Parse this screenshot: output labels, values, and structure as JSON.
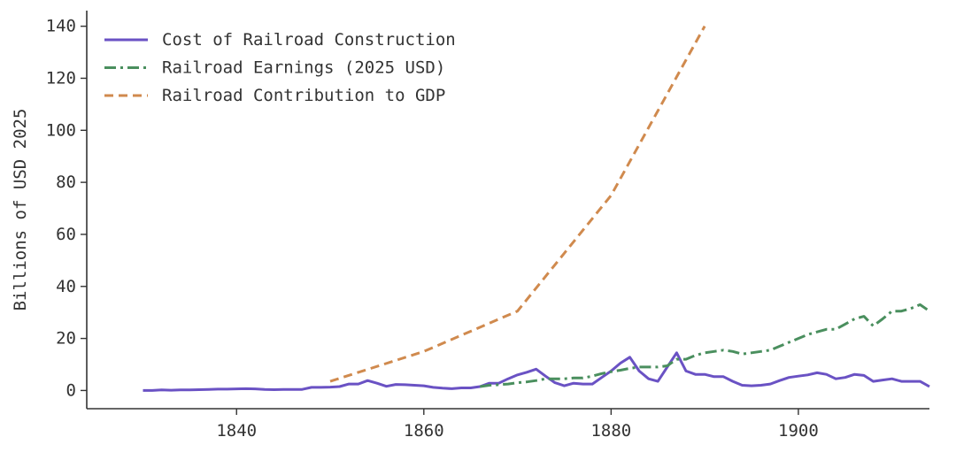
{
  "chart_data": {
    "type": "line",
    "title": "",
    "xlabel": "",
    "ylabel": "Billions of USD 2025",
    "xlim": [
      1824,
      1914
    ],
    "ylim": [
      -7,
      146
    ],
    "xticks": [
      1840,
      1860,
      1880,
      1900
    ],
    "yticks": [
      0,
      20,
      40,
      60,
      80,
      100,
      120,
      140
    ],
    "grid": false,
    "legend_position": "top-left",
    "series": [
      {
        "name": "Cost of Railroad Construction",
        "color": "#6a52c4",
        "style": "solid",
        "x": [
          1830,
          1831,
          1832,
          1833,
          1834,
          1835,
          1836,
          1837,
          1838,
          1839,
          1840,
          1841,
          1842,
          1843,
          1844,
          1845,
          1846,
          1847,
          1848,
          1849,
          1850,
          1851,
          1852,
          1853,
          1854,
          1855,
          1856,
          1857,
          1858,
          1859,
          1860,
          1861,
          1862,
          1863,
          1864,
          1865,
          1866,
          1867,
          1868,
          1869,
          1870,
          1871,
          1872,
          1873,
          1874,
          1875,
          1876,
          1877,
          1878,
          1879,
          1880,
          1881,
          1882,
          1883,
          1884,
          1885,
          1886,
          1887,
          1888,
          1889,
          1890,
          1891,
          1892,
          1893,
          1894,
          1895,
          1896,
          1897,
          1898,
          1899,
          1900,
          1901,
          1902,
          1903,
          1904,
          1905,
          1906,
          1907,
          1908,
          1909,
          1910,
          1911,
          1912,
          1913,
          1914
        ],
        "values": [
          0.0,
          0.0,
          0.2,
          0.1,
          0.2,
          0.2,
          0.3,
          0.4,
          0.5,
          0.5,
          0.6,
          0.7,
          0.6,
          0.4,
          0.3,
          0.4,
          0.4,
          0.4,
          1.2,
          1.2,
          1.3,
          1.5,
          2.5,
          2.5,
          3.8,
          2.8,
          1.6,
          2.3,
          2.2,
          2.0,
          1.8,
          1.2,
          0.9,
          0.7,
          1.0,
          1.0,
          1.5,
          2.8,
          2.8,
          4.5,
          6.0,
          7.0,
          8.2,
          5.5,
          3.0,
          1.8,
          2.8,
          2.5,
          2.5,
          5.0,
          7.5,
          10.5,
          12.8,
          7.5,
          4.5,
          3.5,
          9.0,
          14.5,
          7.5,
          6.2,
          6.2,
          5.3,
          5.3,
          3.5,
          2.0,
          1.8,
          2.0,
          2.5,
          3.8,
          5.0,
          5.5,
          6.0,
          6.8,
          6.2,
          4.5,
          5.0,
          6.2,
          5.8,
          3.5,
          4.0,
          4.5,
          3.5,
          3.5,
          3.5,
          1.5
        ]
      },
      {
        "name": "Railroad Earnings (2025 USD)",
        "color": "#4a8f5e",
        "style": "dashdot",
        "x": [
          1866,
          1867,
          1868,
          1869,
          1870,
          1871,
          1872,
          1873,
          1874,
          1875,
          1876,
          1877,
          1878,
          1879,
          1880,
          1881,
          1882,
          1883,
          1884,
          1885,
          1886,
          1887,
          1888,
          1889,
          1890,
          1891,
          1892,
          1893,
          1894,
          1895,
          1896,
          1897,
          1898,
          1899,
          1900,
          1901,
          1902,
          1903,
          1904,
          1905,
          1906,
          1907,
          1908,
          1909,
          1910,
          1911,
          1912,
          1913,
          1914
        ],
        "values": [
          1.5,
          2.0,
          2.2,
          2.5,
          3.0,
          3.3,
          3.8,
          4.5,
          4.5,
          4.5,
          4.8,
          4.8,
          5.5,
          6.5,
          7.2,
          7.8,
          8.5,
          9.0,
          9.0,
          9.0,
          9.5,
          12.0,
          12.0,
          13.5,
          14.5,
          15.0,
          15.5,
          15.0,
          14.0,
          14.5,
          15.0,
          15.5,
          17.0,
          18.5,
          20.0,
          21.5,
          22.5,
          23.5,
          23.5,
          25.5,
          27.5,
          28.5,
          24.8,
          27.5,
          30.5,
          30.5,
          31.5,
          33.0,
          30.5
        ]
      },
      {
        "name": "Railroad Contribution to GDP",
        "color": "#d08a4e",
        "style": "dashed",
        "x": [
          1850,
          1860,
          1870,
          1880,
          1890
        ],
        "values": [
          3.5,
          15.0,
          30.5,
          75.0,
          140.0
        ]
      }
    ]
  }
}
